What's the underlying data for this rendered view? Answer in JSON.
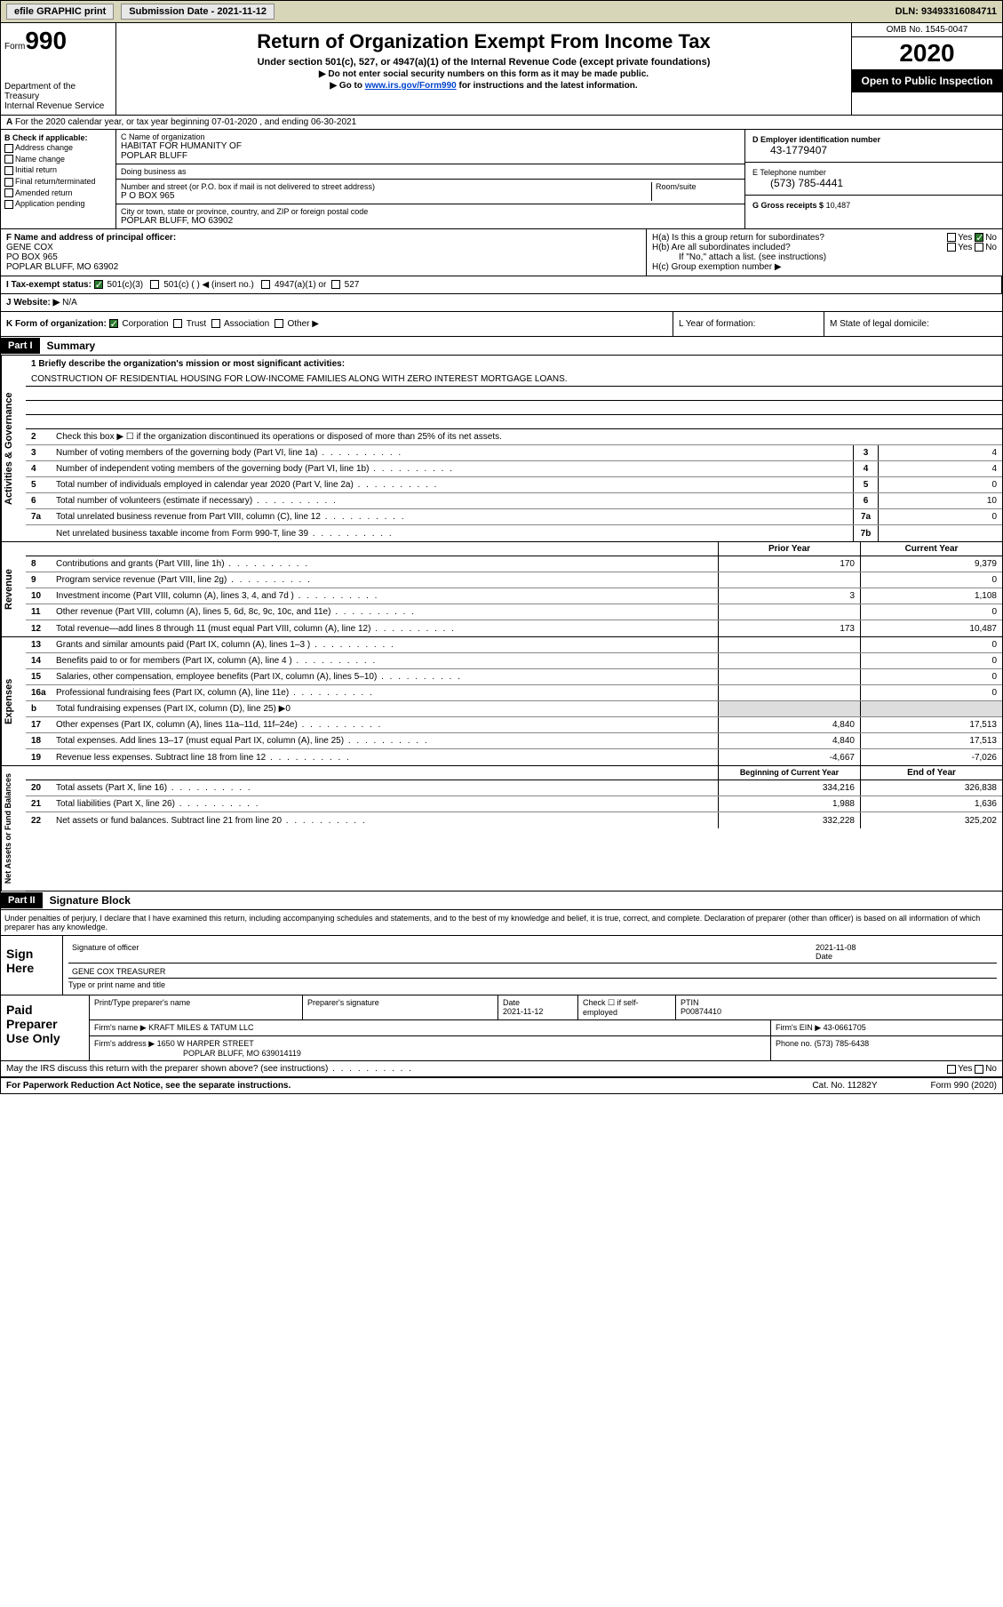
{
  "topbar": {
    "efile": "efile GRAPHIC print",
    "submission_label": "Submission Date - 2021-11-12",
    "dln": "DLN: 93493316084711"
  },
  "header": {
    "form_label": "Form",
    "form_no": "990",
    "dept": "Department of the Treasury\nInternal Revenue Service",
    "title": "Return of Organization Exempt From Income Tax",
    "subtitle": "Under section 501(c), 527, or 4947(a)(1) of the Internal Revenue Code (except private foundations)",
    "instr1": "▶ Do not enter social security numbers on this form as it may be made public.",
    "instr2_pre": "▶ Go to ",
    "instr2_link": "www.irs.gov/Form990",
    "instr2_post": " for instructions and the latest information.",
    "omb": "OMB No. 1545-0047",
    "year": "2020",
    "open": "Open to Public Inspection"
  },
  "lineA": "For the 2020 calendar year, or tax year beginning 07-01-2020    , and ending 06-30-2021",
  "boxB": {
    "label": "B Check if applicable:",
    "opts": [
      "Address change",
      "Name change",
      "Initial return",
      "Final return/terminated",
      "Amended return",
      "Application pending"
    ]
  },
  "boxC": {
    "name_label": "C Name of organization",
    "name": "HABITAT FOR HUMANITY OF\nPOPLAR BLUFF",
    "dba_label": "Doing business as",
    "addr_label": "Number and street (or P.O. box if mail is not delivered to street address)",
    "room_label": "Room/suite",
    "addr": "P O BOX 965",
    "city_label": "City or town, state or province, country, and ZIP or foreign postal code",
    "city": "POPLAR BLUFF, MO  63902"
  },
  "boxD": {
    "label": "D Employer identification number",
    "val": "43-1779407"
  },
  "boxE": {
    "label": "E Telephone number",
    "val": "(573) 785-4441"
  },
  "boxG": {
    "label": "G Gross receipts $",
    "val": "10,487"
  },
  "boxF": {
    "label": "F  Name and address of principal officer:",
    "name": "GENE COX",
    "addr1": "PO BOX 965",
    "addr2": "POPLAR BLUFF, MO  63902"
  },
  "boxH": {
    "ha": "H(a)  Is this a group return for subordinates?",
    "hb": "H(b)  Are all subordinates included?",
    "hb_note": "If \"No,\" attach a list. (see instructions)",
    "hc": "H(c)  Group exemption number ▶",
    "yes": "Yes",
    "no": "No"
  },
  "boxI": {
    "label": "I   Tax-exempt status:",
    "opts": [
      "501(c)(3)",
      "501(c) (  ) ◀ (insert no.)",
      "4947(a)(1) or",
      "527"
    ]
  },
  "boxJ": {
    "label": "J   Website: ▶",
    "val": "N/A"
  },
  "boxK": {
    "label": "K Form of organization:",
    "opts": [
      "Corporation",
      "Trust",
      "Association",
      "Other ▶"
    ]
  },
  "boxL": "L Year of formation:",
  "boxM": "M State of legal domicile:",
  "part1": {
    "hdr": "Part I",
    "title": "Summary"
  },
  "summary": {
    "l1_label": "1  Briefly describe the organization's mission or most significant activities:",
    "l1_val": "CONSTRUCTION OF RESIDENTIAL HOUSING FOR LOW-INCOME FAMILIES ALONG WITH ZERO INTEREST MORTGAGE LOANS.",
    "l2": "Check this box ▶ ☐  if the organization discontinued its operations or disposed of more than 25% of its net assets.",
    "lines_gov": [
      {
        "n": "3",
        "d": "Number of voting members of the governing body (Part VI, line 1a)",
        "b": "3",
        "v": "4"
      },
      {
        "n": "4",
        "d": "Number of independent voting members of the governing body (Part VI, line 1b)",
        "b": "4",
        "v": "4"
      },
      {
        "n": "5",
        "d": "Total number of individuals employed in calendar year 2020 (Part V, line 2a)",
        "b": "5",
        "v": "0"
      },
      {
        "n": "6",
        "d": "Total number of volunteers (estimate if necessary)",
        "b": "6",
        "v": "10"
      },
      {
        "n": "7a",
        "d": "Total unrelated business revenue from Part VIII, column (C), line 12",
        "b": "7a",
        "v": "0"
      },
      {
        "n": "",
        "d": "Net unrelated business taxable income from Form 990-T, line 39",
        "b": "7b",
        "v": ""
      }
    ],
    "prior_label": "Prior Year",
    "current_label": "Current Year",
    "rev": [
      {
        "n": "8",
        "d": "Contributions and grants (Part VIII, line 1h)",
        "p": "170",
        "c": "9,379"
      },
      {
        "n": "9",
        "d": "Program service revenue (Part VIII, line 2g)",
        "p": "",
        "c": "0"
      },
      {
        "n": "10",
        "d": "Investment income (Part VIII, column (A), lines 3, 4, and 7d )",
        "p": "3",
        "c": "1,108"
      },
      {
        "n": "11",
        "d": "Other revenue (Part VIII, column (A), lines 5, 6d, 8c, 9c, 10c, and 11e)",
        "p": "",
        "c": "0"
      },
      {
        "n": "12",
        "d": "Total revenue—add lines 8 through 11 (must equal Part VIII, column (A), line 12)",
        "p": "173",
        "c": "10,487"
      }
    ],
    "exp": [
      {
        "n": "13",
        "d": "Grants and similar amounts paid (Part IX, column (A), lines 1–3 )",
        "p": "",
        "c": "0"
      },
      {
        "n": "14",
        "d": "Benefits paid to or for members (Part IX, column (A), line 4 )",
        "p": "",
        "c": "0"
      },
      {
        "n": "15",
        "d": "Salaries, other compensation, employee benefits (Part IX, column (A), lines 5–10)",
        "p": "",
        "c": "0"
      },
      {
        "n": "16a",
        "d": "Professional fundraising fees (Part IX, column (A), line 11e)",
        "p": "",
        "c": "0"
      },
      {
        "n": "b",
        "d": "Total fundraising expenses (Part IX, column (D), line 25) ▶0",
        "p": "—shade—",
        "c": "—shade—"
      },
      {
        "n": "17",
        "d": "Other expenses (Part IX, column (A), lines 11a–11d, 11f–24e)",
        "p": "4,840",
        "c": "17,513"
      },
      {
        "n": "18",
        "d": "Total expenses. Add lines 13–17 (must equal Part IX, column (A), line 25)",
        "p": "4,840",
        "c": "17,513"
      },
      {
        "n": "19",
        "d": "Revenue less expenses. Subtract line 18 from line 12",
        "p": "-4,667",
        "c": "-7,026"
      }
    ],
    "begin_label": "Beginning of Current Year",
    "end_label": "End of Year",
    "net": [
      {
        "n": "20",
        "d": "Total assets (Part X, line 16)",
        "p": "334,216",
        "c": "326,838"
      },
      {
        "n": "21",
        "d": "Total liabilities (Part X, line 26)",
        "p": "1,988",
        "c": "1,636"
      },
      {
        "n": "22",
        "d": "Net assets or fund balances. Subtract line 21 from line 20",
        "p": "332,228",
        "c": "325,202"
      }
    ],
    "side_gov": "Activities & Governance",
    "side_rev": "Revenue",
    "side_exp": "Expenses",
    "side_net": "Net Assets or Fund Balances"
  },
  "part2": {
    "hdr": "Part II",
    "title": "Signature Block"
  },
  "sig": {
    "perjury": "Under penalties of perjury, I declare that I have examined this return, including accompanying schedules and statements, and to the best of my knowledge and belief, it is true, correct, and complete. Declaration of preparer (other than officer) is based on all information of which preparer has any knowledge.",
    "sign_here": "Sign Here",
    "sig_officer": "Signature of officer",
    "date_label": "Date",
    "date": "2021-11-08",
    "officer_name": "GENE COX  TREASURER",
    "type_label": "Type or print name and title"
  },
  "prep": {
    "label": "Paid Preparer Use Only",
    "print_label": "Print/Type preparer's name",
    "sig_label": "Preparer's signature",
    "date_label": "Date",
    "date": "2021-11-12",
    "check_label": "Check ☐ if self-employed",
    "ptin_label": "PTIN",
    "ptin": "P00874410",
    "firm_name_label": "Firm's name    ▶",
    "firm_name": "KRAFT MILES & TATUM LLC",
    "firm_ein_label": "Firm's EIN ▶",
    "firm_ein": "43-0661705",
    "firm_addr_label": "Firm's address ▶",
    "firm_addr1": "1650 W HARPER STREET",
    "firm_addr2": "POPLAR BLUFF, MO  639014119",
    "phone_label": "Phone no.",
    "phone": "(573) 785-6438"
  },
  "discuss": "May the IRS discuss this return with the preparer shown above? (see instructions)",
  "footer": {
    "pra": "For Paperwork Reduction Act Notice, see the separate instructions.",
    "cat": "Cat. No. 11282Y",
    "form": "Form 990 (2020)"
  }
}
